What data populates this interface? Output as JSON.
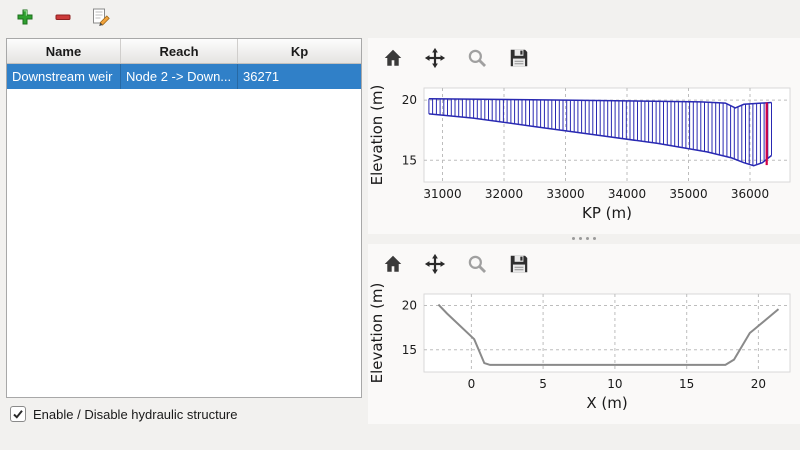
{
  "colors": {
    "selection_blue": "#3080c8",
    "hatch_blue": "#2929b2",
    "marker_red": "#d40042",
    "profile_gray": "#8a8a8a"
  },
  "main_toolbar": {
    "buttons": [
      {
        "name": "add",
        "icon": "plus-icon"
      },
      {
        "name": "remove",
        "icon": "minus-icon"
      },
      {
        "name": "edit",
        "icon": "edit-icon"
      }
    ]
  },
  "table": {
    "columns": [
      "Name",
      "Reach",
      "Kp"
    ],
    "rows": [
      {
        "name": "Downstream weir",
        "reach": "Node 2 -> Down...",
        "kp": "36271",
        "selected": true
      }
    ]
  },
  "footer": {
    "checkbox_label": "Enable / Disable hydraulic structure",
    "checkbox_checked": true
  },
  "chart_toolbar": {
    "icons": [
      "home",
      "pan",
      "zoom",
      "save"
    ]
  },
  "chart_data": [
    {
      "type": "area",
      "series_type": "hatched_band",
      "title": "",
      "xlabel": "KP (m)",
      "ylabel": "Elevation (m)",
      "xlim": [
        30700,
        36650
      ],
      "ylim": [
        13.2,
        21.0
      ],
      "xticks": [
        31000,
        32000,
        33000,
        34000,
        35000,
        36000
      ],
      "yticks": [
        15,
        20
      ],
      "grid": "dashed",
      "legend": "none",
      "color": "#2929b2",
      "hatch_count": 92,
      "top_profile": [
        [
          30780,
          20.1
        ],
        [
          33000,
          20.0
        ],
        [
          35200,
          19.85
        ],
        [
          35600,
          19.75
        ],
        [
          35760,
          19.35
        ],
        [
          35900,
          19.65
        ],
        [
          36350,
          19.8
        ]
      ],
      "bottom_profile": [
        [
          30780,
          18.85
        ],
        [
          31500,
          18.5
        ],
        [
          32500,
          17.8
        ],
        [
          33500,
          17.1
        ],
        [
          34500,
          16.4
        ],
        [
          35300,
          15.7
        ],
        [
          35700,
          15.2
        ],
        [
          35900,
          14.8
        ],
        [
          36060,
          14.55
        ],
        [
          36200,
          14.8
        ],
        [
          36350,
          15.4
        ]
      ],
      "marker_line": {
        "x": 36271,
        "y_bottom": 14.6,
        "y_top": 19.8,
        "color": "#d40042"
      }
    },
    {
      "type": "line",
      "title": "",
      "xlabel": "X (m)",
      "ylabel": "Elevation (m)",
      "xlim": [
        -3.3,
        22.2
      ],
      "ylim": [
        12.5,
        21.3
      ],
      "xticks": [
        0,
        5,
        10,
        15,
        20
      ],
      "yticks": [
        15,
        20
      ],
      "grid": "dashed",
      "legend": "none",
      "line_color": "#8a8a8a",
      "points": [
        [
          -2.3,
          20.1
        ],
        [
          -1.7,
          19.1
        ],
        [
          0.2,
          16.2
        ],
        [
          0.9,
          13.5
        ],
        [
          1.3,
          13.3
        ],
        [
          17.7,
          13.3
        ],
        [
          18.3,
          13.9
        ],
        [
          19.4,
          16.9
        ],
        [
          19.7,
          17.3
        ],
        [
          21.4,
          19.6
        ]
      ]
    }
  ]
}
